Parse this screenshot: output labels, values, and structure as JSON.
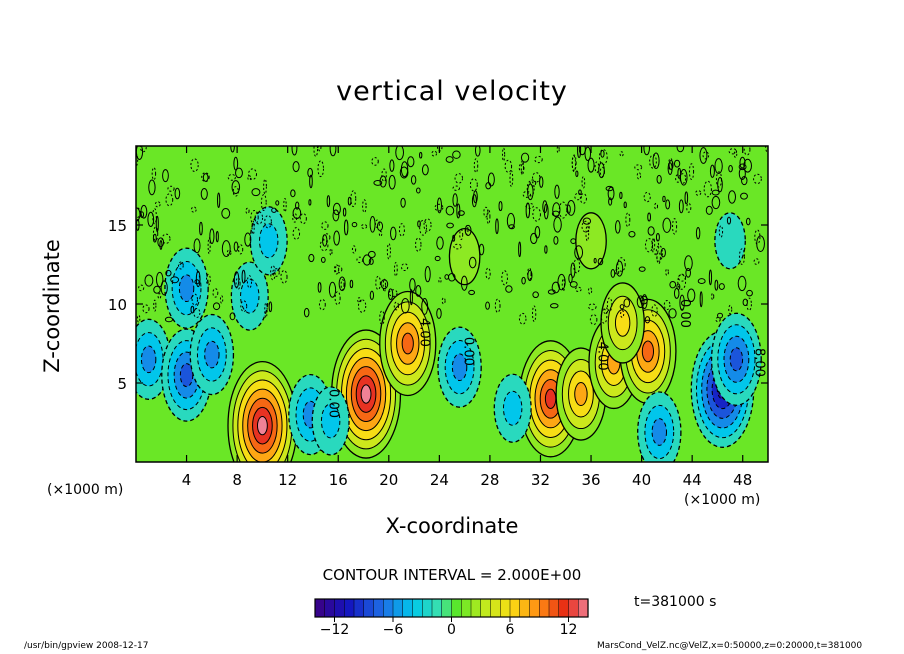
{
  "chart_data": {
    "type": "heatmap",
    "title": "vertical velocity",
    "xlabel": "X-coordinate",
    "ylabel": "Z-coordinate",
    "x_unit_left": "(×1000 m)",
    "x_unit_right": "(×1000 m)",
    "xlim": [
      0,
      50
    ],
    "ylim": [
      0,
      20
    ],
    "x_ticks": [
      4,
      8,
      12,
      16,
      20,
      24,
      28,
      32,
      36,
      40,
      44,
      48
    ],
    "y_ticks": [
      5,
      10,
      15
    ],
    "contour_interval_text": "CONTOUR INTERVAL = 2.000E+00",
    "contour_labels": [
      {
        "x": 22.5,
        "z": 8.2,
        "text": "4.00"
      },
      {
        "x": 26.0,
        "z": 7.0,
        "text": "0.00"
      },
      {
        "x": 15.3,
        "z": 3.7,
        "text": "0.00"
      },
      {
        "x": 36.6,
        "z": 6.7,
        "text": "4.00"
      },
      {
        "x": 43.1,
        "z": 9.4,
        "text": "0.00"
      },
      {
        "x": 49.0,
        "z": 6.3,
        "text": "8.00"
      }
    ],
    "colorbar": {
      "min": -14,
      "max": 14,
      "ticks": [
        -12,
        -6,
        0,
        6,
        12
      ],
      "tick_labels": [
        "−12",
        "−6",
        "0",
        "6",
        "12"
      ]
    },
    "cells": [
      {
        "x": 10,
        "z": 2.3,
        "value": 14
      },
      {
        "x": 18.2,
        "z": 4.3,
        "value": 14
      },
      {
        "x": 21.5,
        "z": 7.5,
        "value": 10
      },
      {
        "x": 32.8,
        "z": 4.0,
        "value": 12
      },
      {
        "x": 35.2,
        "z": 4.3,
        "value": 8
      },
      {
        "x": 37.8,
        "z": 6.3,
        "value": 8
      },
      {
        "x": 40.5,
        "z": 7.0,
        "value": 10
      },
      {
        "x": 38.5,
        "z": 8.8,
        "value": 6
      },
      {
        "x": 13.8,
        "z": 3.0,
        "value": -6
      },
      {
        "x": 15.4,
        "z": 2.6,
        "value": -4
      },
      {
        "x": 25.6,
        "z": 6.0,
        "value": -6
      },
      {
        "x": 29.8,
        "z": 3.4,
        "value": -4
      },
      {
        "x": 41.4,
        "z": 1.9,
        "value": -6
      },
      {
        "x": 46.4,
        "z": 4.6,
        "value": -12
      },
      {
        "x": 47.5,
        "z": 6.5,
        "value": -8
      },
      {
        "x": 1.0,
        "z": 6.5,
        "value": -6
      },
      {
        "x": 4.0,
        "z": 5.5,
        "value": -7
      },
      {
        "x": 6.0,
        "z": 6.8,
        "value": -5
      },
      {
        "x": 4.0,
        "z": 11.0,
        "value": -5
      },
      {
        "x": 9.0,
        "z": 10.5,
        "value": -4
      },
      {
        "x": 10.5,
        "z": 14.0,
        "value": -3
      },
      {
        "x": 26.0,
        "z": 13.0,
        "value": 2
      },
      {
        "x": 36.0,
        "z": 14.0,
        "value": 2
      },
      {
        "x": 47.0,
        "z": 14.0,
        "value": -2
      }
    ]
  },
  "labels": {
    "time": "t=381000 s",
    "footer_left": "/usr/bin/gpview   2008-12-17",
    "footer_right": "MarsCond_VelZ.nc@VelZ,x=0:50000,z=0:20000,t=381000"
  }
}
